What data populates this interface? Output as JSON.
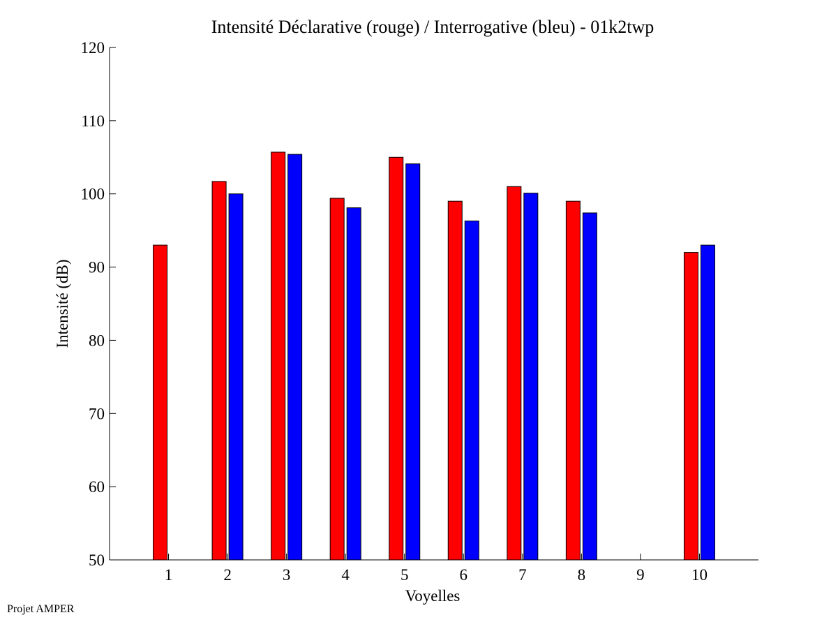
{
  "chart_data": {
    "type": "bar",
    "title": "Intensité Déclarative (rouge) / Interrogative (bleu) - 01k2twp",
    "xlabel": "Voyelles",
    "ylabel": "Intensité (dB)",
    "categories": [
      "1",
      "2",
      "3",
      "4",
      "5",
      "6",
      "7",
      "8",
      "9",
      "10"
    ],
    "xlim": [
      0,
      11
    ],
    "ylim": [
      50,
      120
    ],
    "yticks": [
      50,
      60,
      70,
      80,
      90,
      100,
      110,
      120
    ],
    "grid": false,
    "legend": "none",
    "series": [
      {
        "name": "Déclarative",
        "color": "#ff0000",
        "values": [
          93.0,
          101.7,
          105.7,
          99.4,
          105.0,
          99.0,
          101.0,
          99.0,
          null,
          92.0
        ]
      },
      {
        "name": "Interrogative",
        "color": "#0000ff",
        "values": [
          null,
          100.0,
          105.4,
          98.1,
          104.1,
          96.3,
          100.1,
          97.4,
          null,
          93.0
        ]
      }
    ]
  },
  "footer": "Projet AMPER"
}
